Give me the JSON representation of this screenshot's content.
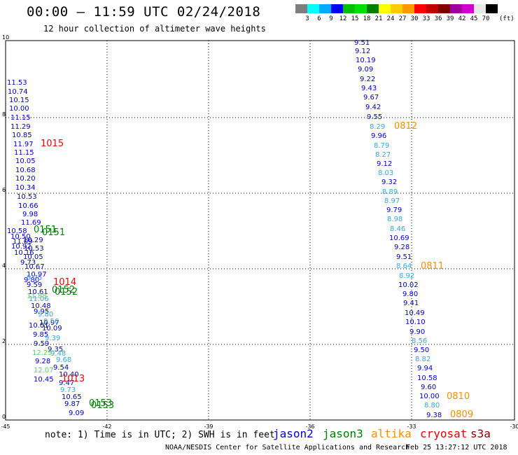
{
  "header": {
    "title": "00:00 – 11:59 UTC 02/24/2018",
    "subtitle": "12 hour collection of altimeter wave heights"
  },
  "colorbar": {
    "unit": "(ft)",
    "colors": [
      "#7f7f7f",
      "#00ffff",
      "#00aaff",
      "#0000ff",
      "#00c000",
      "#00e000",
      "#008000",
      "#ffff00",
      "#ffcc00",
      "#ff9900",
      "#ff0000",
      "#c00000",
      "#800000",
      "#a000a0",
      "#d000d0",
      "#e8e8e8",
      "#000000"
    ],
    "labels": [
      "3",
      "6",
      "9",
      "12",
      "15",
      "18",
      "21",
      "24",
      "27",
      "30",
      "33",
      "36",
      "39",
      "42",
      "45",
      "70"
    ]
  },
  "axes": {
    "x_ticks": [
      "-45",
      "-42",
      "-39",
      "-36",
      "-33",
      "-30"
    ],
    "y_ticks": [
      "0",
      "2",
      "4",
      "6",
      "8",
      "10"
    ]
  },
  "satellite_colors": {
    "jason2": "#0000cc",
    "jason3": "#008000",
    "jason3_light": "#66cc66",
    "altika": "#ff8c00",
    "altika_light": "#33aadd",
    "cryosat": "#ee0000",
    "s3a": "#880000"
  },
  "tracks": [
    {
      "satellite": "jason2",
      "color": "#0000cc",
      "points": [
        [
          "9.51",
          506,
          64
        ],
        [
          "9.12",
          507,
          76
        ],
        [
          "10.19",
          508,
          89
        ],
        [
          "9.09",
          511,
          102
        ],
        [
          "9.22",
          514,
          116
        ],
        [
          "9.43",
          516,
          129
        ],
        [
          "9.67",
          519,
          142
        ],
        [
          "9.42",
          522,
          156
        ],
        [
          "9.55",
          524,
          170
        ]
      ]
    },
    {
      "satellite": "jason2",
      "color": "#0000cc",
      "points": [
        [
          "9.96",
          530,
          197
        ],
        [
          "9.12",
          538,
          237
        ],
        [
          "9.32",
          545,
          263
        ],
        [
          "9.79",
          552,
          303
        ],
        [
          "10.69",
          556,
          343
        ],
        [
          "9.28",
          563,
          356
        ],
        [
          "9.51",
          566,
          370
        ],
        [
          "10.02",
          569,
          410
        ],
        [
          "9.80",
          575,
          423
        ],
        [
          "9.41",
          576,
          436
        ],
        [
          "10.49",
          578,
          450
        ],
        [
          "10.10",
          579,
          463
        ],
        [
          "9.90",
          585,
          477
        ],
        [
          "9.50",
          591,
          503
        ],
        [
          "9.94",
          596,
          529
        ],
        [
          "10.58",
          596,
          543
        ],
        [
          "9.60",
          601,
          556
        ],
        [
          "10.00",
          599,
          569
        ],
        [
          "9.38",
          609,
          596
        ]
      ]
    },
    {
      "satellite": "altika",
      "color": "#33aadd",
      "points": [
        [
          "8.29",
          528,
          184
        ],
        [
          "8.79",
          534,
          211
        ],
        [
          "8.27",
          536,
          224
        ],
        [
          "8.03",
          540,
          250
        ],
        [
          "8.89",
          546,
          277
        ],
        [
          "8.97",
          549,
          290
        ],
        [
          "8.98",
          553,
          316
        ],
        [
          "8.46",
          557,
          330
        ],
        [
          "8.64",
          566,
          383
        ],
        [
          "8.92",
          570,
          397
        ],
        [
          "8.56",
          588,
          490
        ],
        [
          "8.82",
          593,
          516
        ],
        [
          "8.80",
          606,
          582
        ]
      ]
    },
    {
      "satellite": "jason2",
      "color": "#0000cc",
      "points": [
        [
          "11.53",
          10,
          121
        ],
        [
          "10.74",
          11,
          134
        ],
        [
          "10.15",
          13,
          146
        ],
        [
          "10.00",
          13,
          158
        ],
        [
          "11.15",
          15,
          171
        ],
        [
          "11.29",
          15,
          184
        ],
        [
          "10.85",
          17,
          196
        ],
        [
          "11.97",
          19,
          209
        ],
        [
          "11.15",
          20,
          221
        ],
        [
          "10.05",
          22,
          233
        ],
        [
          "10.68",
          22,
          246
        ],
        [
          "10.20",
          22,
          258
        ],
        [
          "10.34",
          22,
          271
        ],
        [
          "10.53",
          24,
          284
        ],
        [
          "10.66",
          26,
          297
        ],
        [
          "9.98",
          32,
          309
        ],
        [
          "11.69",
          30,
          321
        ]
      ]
    },
    {
      "satellite": "jason2",
      "color": "#0000cc",
      "points": [
        [
          "10.58",
          10,
          333
        ],
        [
          "10.50",
          15,
          341
        ],
        [
          "11.09",
          18,
          348
        ],
        [
          "10.29",
          33,
          346
        ],
        [
          "10.92",
          16,
          355
        ],
        [
          "10.53",
          34,
          358
        ],
        [
          "10.16",
          20,
          364
        ],
        [
          "10.05",
          33,
          370
        ],
        [
          "9.73",
          29,
          378
        ],
        [
          "10.67",
          35,
          384
        ],
        [
          "10.97",
          38,
          395
        ],
        [
          "9.80",
          34,
          403
        ],
        [
          "9.59",
          38,
          410
        ],
        [
          "10.61",
          40,
          420
        ],
        [
          "10.48",
          44,
          440
        ],
        [
          "9.95",
          48,
          448
        ],
        [
          "10.97",
          56,
          464
        ],
        [
          "10.09",
          60,
          472
        ],
        [
          "10.01",
          41,
          468
        ],
        [
          "9.85",
          47,
          481
        ],
        [
          "9.59",
          48,
          494
        ],
        [
          "9.35",
          68,
          502
        ],
        [
          "9.28",
          50,
          519
        ],
        [
          "10.45",
          48,
          545
        ],
        [
          "9.54",
          76,
          528
        ],
        [
          "10.40",
          84,
          538
        ],
        [
          "9.47",
          84,
          550
        ],
        [
          "10.65",
          88,
          570
        ],
        [
          "9.87",
          92,
          580
        ],
        [
          "9.09",
          98,
          593
        ]
      ]
    },
    {
      "satellite": "altika",
      "color": "#33aadd",
      "points": [
        [
          "9.75",
          38,
          400
        ],
        [
          "11.06",
          41,
          430
        ],
        [
          "9.80",
          54,
          452
        ],
        [
          "9.56",
          62,
          462
        ],
        [
          "9.39",
          64,
          486
        ],
        [
          "9.73",
          86,
          560
        ],
        [
          "9.48",
          72,
          508
        ],
        [
          "9.68",
          80,
          517
        ]
      ]
    },
    {
      "satellite": "jason3",
      "color": "#66cc66",
      "points": [
        [
          "12.29",
          46,
          507
        ],
        [
          "12.07",
          48,
          532
        ],
        [
          "11.88",
          38,
          426
        ]
      ]
    },
    {
      "satellite": "jason3",
      "color": "#008000",
      "points": []
    }
  ],
  "track_labels": [
    {
      "text": "0812",
      "color": "#ff8c00",
      "x": 563,
      "y": 184
    },
    {
      "text": "0811",
      "color": "#ff8c00",
      "x": 601,
      "y": 384
    },
    {
      "text": "0810",
      "color": "#ff8c00",
      "x": 638,
      "y": 570
    },
    {
      "text": "0809",
      "color": "#ff8c00",
      "x": 643,
      "y": 596
    },
    {
      "text": "1015",
      "color": "#ee0000",
      "x": 58,
      "y": 209
    },
    {
      "text": "1014",
      "color": "#ee0000",
      "x": 76,
      "y": 407
    },
    {
      "text": "1013",
      "color": "#ee0000",
      "x": 88,
      "y": 545
    },
    {
      "text": "0151",
      "color": "#008000",
      "x": 48,
      "y": 332
    },
    {
      "text": "0151",
      "color": "#008000",
      "x": 60,
      "y": 336
    },
    {
      "text": "0152",
      "color": "#008000",
      "x": 74,
      "y": 418
    },
    {
      "text": "0152",
      "color": "#008000",
      "x": 78,
      "y": 421
    },
    {
      "text": "0153",
      "color": "#008000",
      "x": 127,
      "y": 580
    },
    {
      "text": "0153",
      "color": "#008000",
      "x": 130,
      "y": 583
    }
  ],
  "legend": [
    {
      "name": "jason2",
      "color": "#0000cc"
    },
    {
      "name": "jason3",
      "color": "#008000"
    },
    {
      "name": "altika",
      "color": "#ff8c00"
    },
    {
      "name": "cryosat",
      "color": "#ee0000"
    },
    {
      "name": "s3a",
      "color": "#880000"
    }
  ],
  "footer": {
    "note": "note: 1) Time is in UTC; 2) SWH is in feet",
    "credit": "NOAA/NESDIS Center for Satellite Applications and Research",
    "timestamp": "Feb 25 13:27:12 UTC 2018"
  }
}
